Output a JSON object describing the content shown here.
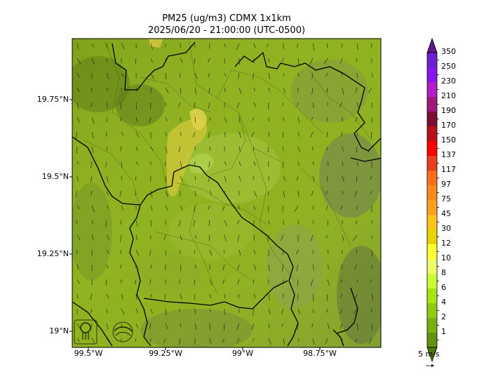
{
  "title": {
    "line1": "PM25 (ug/m3) CDMX 1x1km",
    "line2": "2025/06/20 - 21:00:00 (UTC-0500)"
  },
  "map": {
    "background_color": "#8fb21f",
    "y_ticks": [
      "19.75°N",
      "19.5°N",
      "19.25°N",
      "19°N"
    ],
    "x_ticks": [
      "99.5°W",
      "99.25°W",
      "99°W",
      "98.75°W"
    ],
    "logos": [
      "sedema-logo",
      "aire-logo"
    ]
  },
  "colorbar": {
    "labels": [
      "350",
      "250",
      "230",
      "210",
      "190",
      "170",
      "150",
      "137",
      "117",
      "97",
      "75",
      "45",
      "30",
      "12",
      "10",
      "8",
      "6",
      "4",
      "2",
      "1"
    ],
    "colors": [
      "#6a1fd1",
      "#8a14f0",
      "#b21fc6",
      "#9e1b7a",
      "#7d0e35",
      "#b8111a",
      "#ff0000",
      "#e8401a",
      "#ff6e1a",
      "#ff8c1a",
      "#ffa020",
      "#ffc41a",
      "#e6d400",
      "#ffff33",
      "#f0ff66",
      "#ccff33",
      "#a8e610",
      "#8fcc10",
      "#79b00d",
      "#659010"
    ]
  },
  "wind_scale": {
    "label": "5 m/s"
  }
}
